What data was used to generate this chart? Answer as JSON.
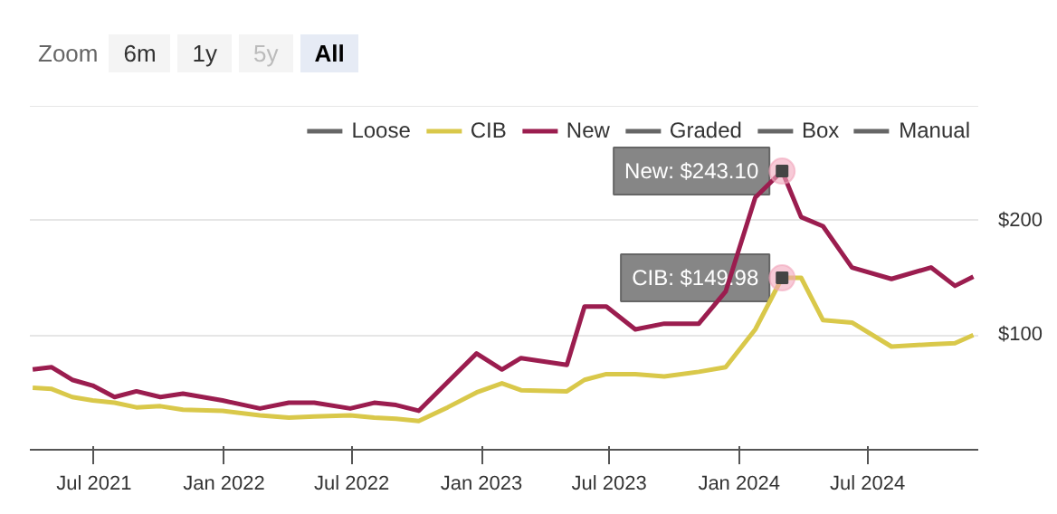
{
  "chart_data": {
    "type": "line",
    "x": [
      "2021-04-05",
      "2021-05-02",
      "2021-05-31",
      "2021-06-29",
      "2021-07-30",
      "2021-08-30",
      "2021-10-03",
      "2021-11-04",
      "2021-12-30",
      "2022-02-21",
      "2022-04-03",
      "2022-05-09",
      "2022-06-29",
      "2022-08-02",
      "2022-09-02",
      "2022-10-04",
      "2022-11-14",
      "2022-12-25",
      "2023-01-30",
      "2023-02-26",
      "2023-05-02",
      "2023-05-27",
      "2023-06-27",
      "2023-08-07",
      "2023-09-17",
      "2023-11-05",
      "2023-12-13",
      "2024-01-24",
      "2024-03-02",
      "2024-03-29",
      "2024-04-29",
      "2024-06-09",
      "2024-08-04",
      "2024-09-29",
      "2024-11-02",
      "2024-11-28"
    ],
    "series": [
      {
        "name": "Loose",
        "color": "#666666",
        "values": [
          null,
          null,
          null,
          null,
          null,
          null,
          null,
          null,
          null,
          null,
          null,
          null,
          null,
          null,
          null,
          null,
          null,
          null,
          null,
          null,
          null,
          null,
          null,
          null,
          null,
          null,
          null,
          null,
          null,
          null,
          null,
          null,
          null,
          null,
          null,
          null
        ]
      },
      {
        "name": "CIB",
        "color": "#d9c84a",
        "values": [
          54,
          53,
          46,
          43,
          41,
          37,
          38,
          35,
          34,
          30,
          28,
          29,
          30,
          28,
          27,
          25,
          37,
          50,
          58,
          52,
          51,
          61,
          66,
          66,
          64,
          68,
          72,
          105,
          149.98,
          150,
          113,
          111,
          90,
          92,
          93,
          100
        ]
      },
      {
        "name": "New",
        "color": "#9b1d4f",
        "values": [
          70,
          72,
          61,
          56,
          46,
          51,
          46,
          49,
          43,
          36,
          41,
          41,
          36,
          41,
          39,
          34,
          59,
          84,
          70,
          80,
          74,
          125,
          125,
          105,
          110,
          110,
          138,
          220,
          243.1,
          203,
          195,
          159,
          149,
          159,
          143,
          151
        ]
      },
      {
        "name": "Graded",
        "color": "#666666",
        "values": [
          null,
          null,
          null,
          null,
          null,
          null,
          null,
          null,
          null,
          null,
          null,
          null,
          null,
          null,
          null,
          null,
          null,
          null,
          null,
          null,
          null,
          null,
          null,
          null,
          null,
          null,
          null,
          null,
          null,
          null,
          null,
          null,
          null,
          null,
          null,
          null
        ]
      },
      {
        "name": "Box",
        "color": "#666666",
        "values": [
          null,
          null,
          null,
          null,
          null,
          null,
          null,
          null,
          null,
          null,
          null,
          null,
          null,
          null,
          null,
          null,
          null,
          null,
          null,
          null,
          null,
          null,
          null,
          null,
          null,
          null,
          null,
          null,
          null,
          null,
          null,
          null,
          null,
          null,
          null,
          null
        ]
      },
      {
        "name": "Manual",
        "color": "#666666",
        "values": [
          null,
          null,
          null,
          null,
          null,
          null,
          null,
          null,
          null,
          null,
          null,
          null,
          null,
          null,
          null,
          null,
          null,
          null,
          null,
          null,
          null,
          null,
          null,
          null,
          null,
          null,
          null,
          null,
          null,
          null,
          null,
          null,
          null,
          null,
          null,
          null
        ]
      }
    ],
    "xlim": [
      "2021-04-01",
      "2024-12-05"
    ],
    "xticks": [
      {
        "value": "2021-07-01",
        "label": "Jul 2021"
      },
      {
        "value": "2022-01-01",
        "label": "Jan 2022"
      },
      {
        "value": "2022-07-01",
        "label": "Jul 2022"
      },
      {
        "value": "2023-01-01",
        "label": "Jan 2023"
      },
      {
        "value": "2023-07-01",
        "label": "Jul 2023"
      },
      {
        "value": "2024-01-01",
        "label": "Jan 2024"
      },
      {
        "value": "2024-07-01",
        "label": "Jul 2024"
      }
    ],
    "ylim": [
      0,
      300
    ],
    "yticks": [
      {
        "value": 100,
        "label": "$100"
      },
      {
        "value": 200,
        "label": "$200"
      },
      {
        "value": 300,
        "label": null
      }
    ],
    "grid": "y",
    "legend": "top right",
    "marker": "none",
    "line_style": "solid",
    "annotations": [
      "Zoom",
      "6m",
      "1y",
      "5y",
      "All",
      {
        "text": "New: $243.10",
        "x": "2024-03-02",
        "y": 243.1
      },
      {
        "text": "CIB: $149.98",
        "x": "2024-03-02",
        "y": 149.98
      }
    ]
  }
}
